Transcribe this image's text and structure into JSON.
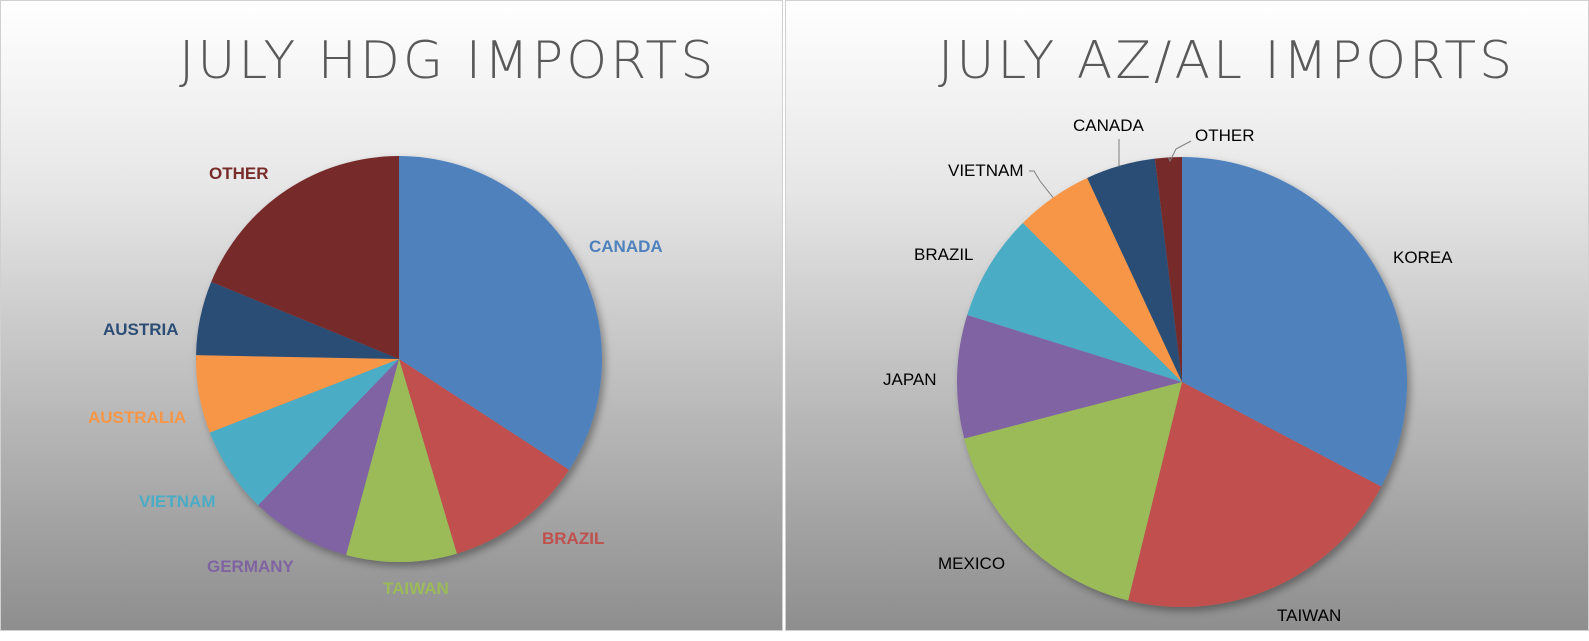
{
  "chart_data": [
    {
      "type": "pie",
      "title": "JULY HDG IMPORTS",
      "label_style": "bold-colored",
      "categories": [
        "CANADA",
        "BRAZIL",
        "TAIWAN",
        "GERMANY",
        "VIETNAM",
        "AUSTRALIA",
        "AUSTRIA",
        "OTHER"
      ],
      "values": [
        34.2,
        11.2,
        8.8,
        8.0,
        6.9,
        6.2,
        5.9,
        18.8
      ],
      "colors": [
        "#4f81bd",
        "#c0504d",
        "#9bbb59",
        "#8064a2",
        "#4bacc6",
        "#f79646",
        "#2c4d75",
        "#772c2a"
      ],
      "legend": "none"
    },
    {
      "type": "pie",
      "title": "JULY AZ/AL IMPORTS",
      "label_style": "plain-black-with-leaders",
      "categories": [
        "KOREA",
        "TAIWAN",
        "MEXICO",
        "JAPAN",
        "BRAZIL",
        "VIETNAM",
        "CANADA",
        "OTHER"
      ],
      "values": [
        34.0,
        22.0,
        17.8,
        9.2,
        8.0,
        5.8,
        5.2,
        2.0
      ],
      "colors": [
        "#4f81bd",
        "#c0504d",
        "#9bbb59",
        "#8064a2",
        "#4bacc6",
        "#f79646",
        "#2c4d75",
        "#772c2a"
      ],
      "legend": "none"
    }
  ]
}
